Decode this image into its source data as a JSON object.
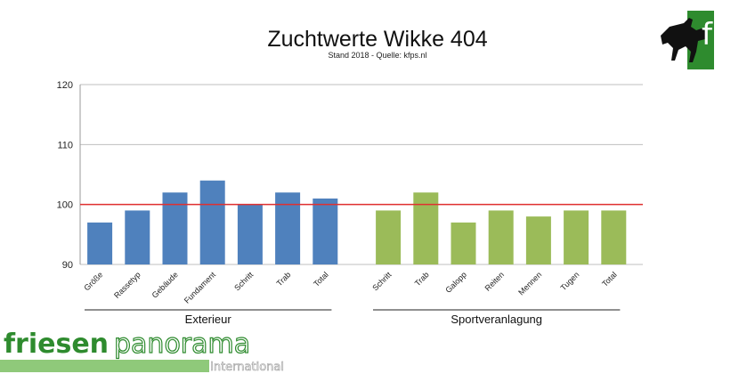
{
  "header": {
    "title": "Zuchtwerte Wikke 404",
    "subtitle": "Stand 2018 - Quelle: kfps.nl"
  },
  "colors": {
    "exterieur_bar": "#4f81bd",
    "sportveranlagung_bar": "#9bbb59",
    "reference_line": "#e03030",
    "gridline": "#bfbfbf",
    "brand_green": "#2e8b2e",
    "brand_light": "#b9d9a6"
  },
  "chart_data": {
    "type": "bar",
    "ylim": [
      90,
      120
    ],
    "yticks": [
      90,
      100,
      110,
      120
    ],
    "reference_line": 100,
    "grid": true,
    "groups": [
      {
        "name": "Exterieur",
        "categories": [
          "Größe",
          "Rassetyp",
          "Gebäude",
          "Fundament",
          "Schritt",
          "Trab",
          "Total"
        ],
        "values": [
          97,
          99,
          102,
          104,
          100,
          102,
          101
        ]
      },
      {
        "name": "Sportveranlagung",
        "categories": [
          "Schritt",
          "Trab",
          "Galopp",
          "Reiten",
          "Mennen",
          "Tugen",
          "Total"
        ],
        "values": [
          99,
          102,
          97,
          99,
          98,
          99,
          99
        ]
      }
    ]
  },
  "logos": {
    "kfp": {
      "icon": "horse-icon",
      "text": "fp"
    },
    "brand": {
      "word1": "friesen",
      "word2": "panorama",
      "sub": "International"
    }
  }
}
